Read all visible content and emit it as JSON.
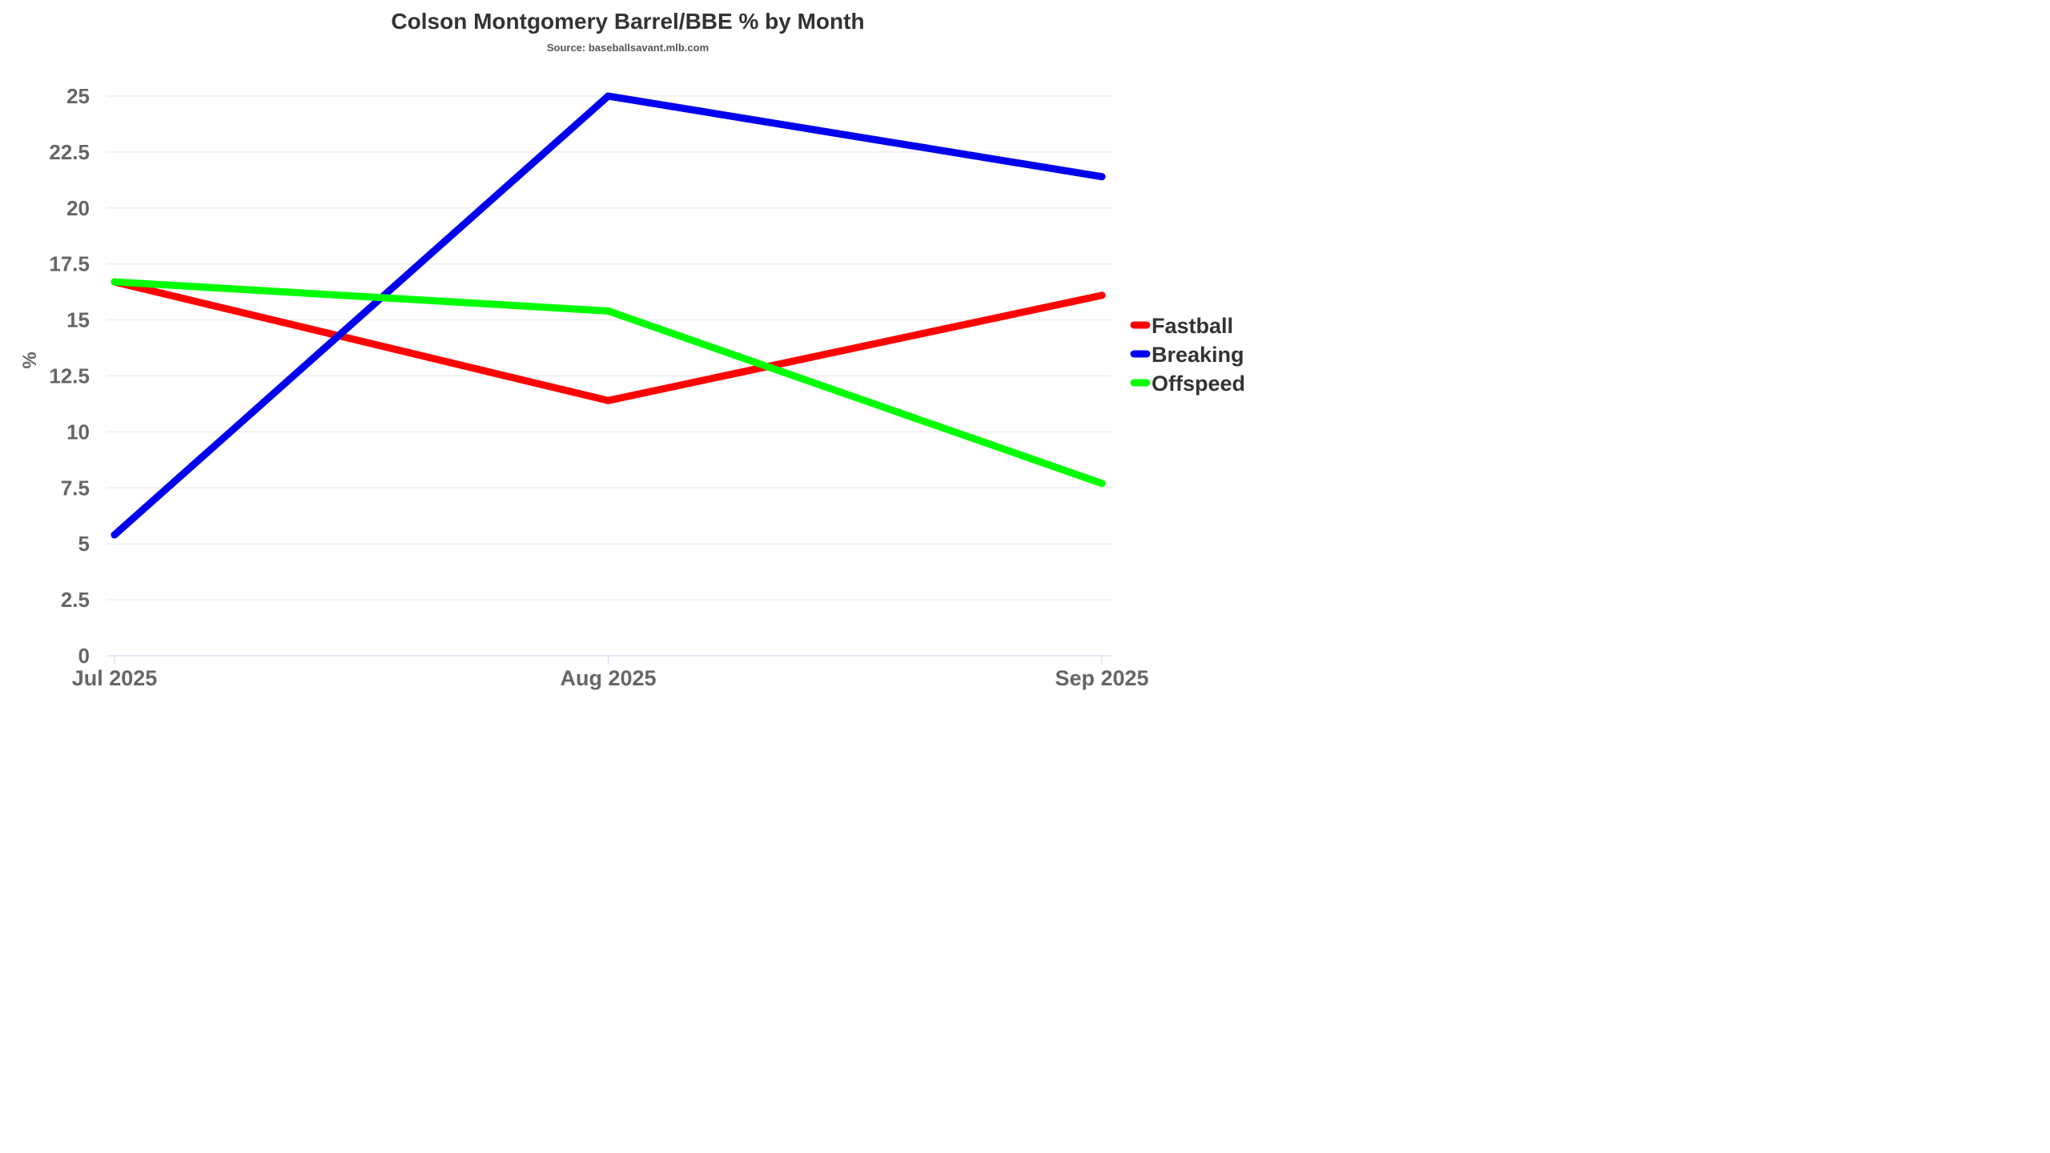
{
  "chart_data": {
    "type": "line",
    "title": "Colson Montgomery Barrel/BBE % by Month",
    "subtitle": "Source: baseballsavant.mlb.com",
    "xlabel": "",
    "ylabel": "%",
    "categories": [
      "Jul 2025",
      "Aug 2025",
      "Sep 2025"
    ],
    "ylim": [
      0,
      25
    ],
    "yticks": [
      0,
      2.5,
      5,
      7.5,
      10,
      12.5,
      15,
      17.5,
      20,
      22.5,
      25
    ],
    "ytick_labels": [
      "0",
      "2.5",
      "5",
      "7.5",
      "10",
      "12.5",
      "15",
      "17.5",
      "20",
      "22.5",
      "25"
    ],
    "grid": true,
    "legend_position": "right",
    "series": [
      {
        "name": "Fastball",
        "color": "#ff0000",
        "values": [
          16.7,
          11.4,
          16.1
        ]
      },
      {
        "name": "Breaking",
        "color": "#0000ee",
        "values": [
          5.4,
          25.0,
          21.4
        ]
      },
      {
        "name": "Offspeed",
        "color": "#00ff00",
        "values": [
          16.7,
          15.4,
          7.7
        ]
      }
    ]
  }
}
